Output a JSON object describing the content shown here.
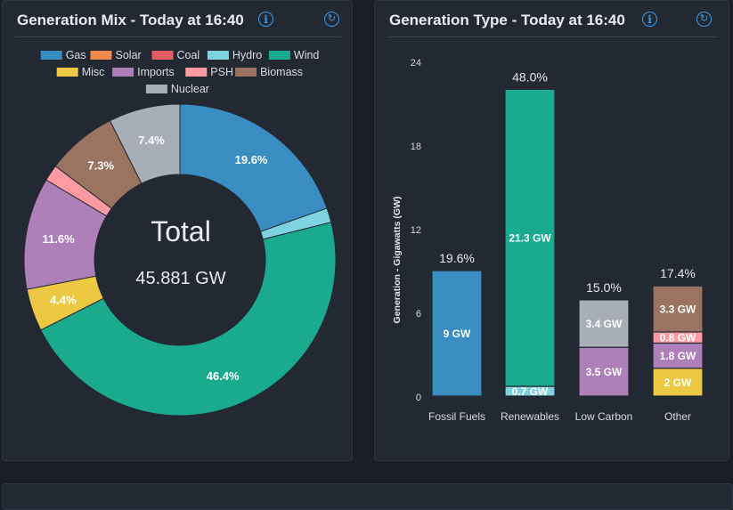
{
  "panels": {
    "mix_title": "Generation Mix - Today at 16:40",
    "type_title": "Generation Type - Today at 16:40"
  },
  "icons": {
    "info": "info-icon",
    "refresh": "refresh-icon"
  },
  "colors": {
    "Gas": "#3a8dc1",
    "Solar": "#f0874b",
    "Coal": "#e35d63",
    "Hydro": "#7fd3e0",
    "Wind": "#1aab8f",
    "Misc": "#ecc843",
    "Imports": "#ae7fb8",
    "PSH": "#ff9aa2",
    "Biomass": "#9a7461",
    "Nuclear": "#a8aeb8"
  },
  "chart_data": [
    {
      "type": "pie",
      "title": "Generation Mix - Today at 16:40",
      "center_label": "Total",
      "center_value": "45.881 GW",
      "legend": [
        "Gas",
        "Solar",
        "Coal",
        "Hydro",
        "Wind",
        "Misc",
        "Imports",
        "PSH",
        "Biomass",
        "Nuclear"
      ],
      "slices": [
        {
          "name": "Gas",
          "value": 19.6,
          "label": "19.6%"
        },
        {
          "name": "Solar",
          "value": 0,
          "label": ""
        },
        {
          "name": "Coal",
          "value": 0,
          "label": ""
        },
        {
          "name": "Hydro",
          "value": 1.5,
          "label": ""
        },
        {
          "name": "Wind",
          "value": 46.4,
          "label": "46.4%"
        },
        {
          "name": "Misc",
          "value": 4.4,
          "label": "4.4%"
        },
        {
          "name": "Imports",
          "value": 11.6,
          "label": "11.6%"
        },
        {
          "name": "PSH",
          "value": 1.7,
          "label": ""
        },
        {
          "name": "Biomass",
          "value": 7.3,
          "label": "7.3%"
        },
        {
          "name": "Nuclear",
          "value": 7.4,
          "label": "7.4%"
        }
      ]
    },
    {
      "type": "bar",
      "stacked": true,
      "title": "Generation Type - Today at 16:40",
      "ylabel": "Generation - Gigawatts (GW)",
      "ylim": [
        0,
        24
      ],
      "yticks": [
        0,
        6,
        12,
        18,
        24
      ],
      "categories": [
        "Fossil Fuels",
        "Renewables",
        "Low Carbon",
        "Other"
      ],
      "totals": [
        "19.6%",
        "48.0%",
        "15.0%",
        "17.4%"
      ],
      "segments": [
        [
          {
            "name": "Gas",
            "value": 9,
            "label": "9 GW"
          }
        ],
        [
          {
            "name": "Hydro",
            "value": 0.7,
            "label": "0.7 GW"
          },
          {
            "name": "Wind",
            "value": 21.3,
            "label": "21.3 GW"
          }
        ],
        [
          {
            "name": "Imports",
            "value": 3.5,
            "label": "3.5 GW"
          },
          {
            "name": "Nuclear",
            "value": 3.4,
            "label": "3.4 GW"
          }
        ],
        [
          {
            "name": "Misc",
            "value": 2,
            "label": "2 GW"
          },
          {
            "name": "Imports",
            "value": 1.8,
            "label": "1.8 GW"
          },
          {
            "name": "PSH",
            "value": 0.8,
            "label": "0.8 GW"
          },
          {
            "name": "Biomass",
            "value": 3.3,
            "label": "3.3 GW"
          }
        ]
      ]
    }
  ]
}
